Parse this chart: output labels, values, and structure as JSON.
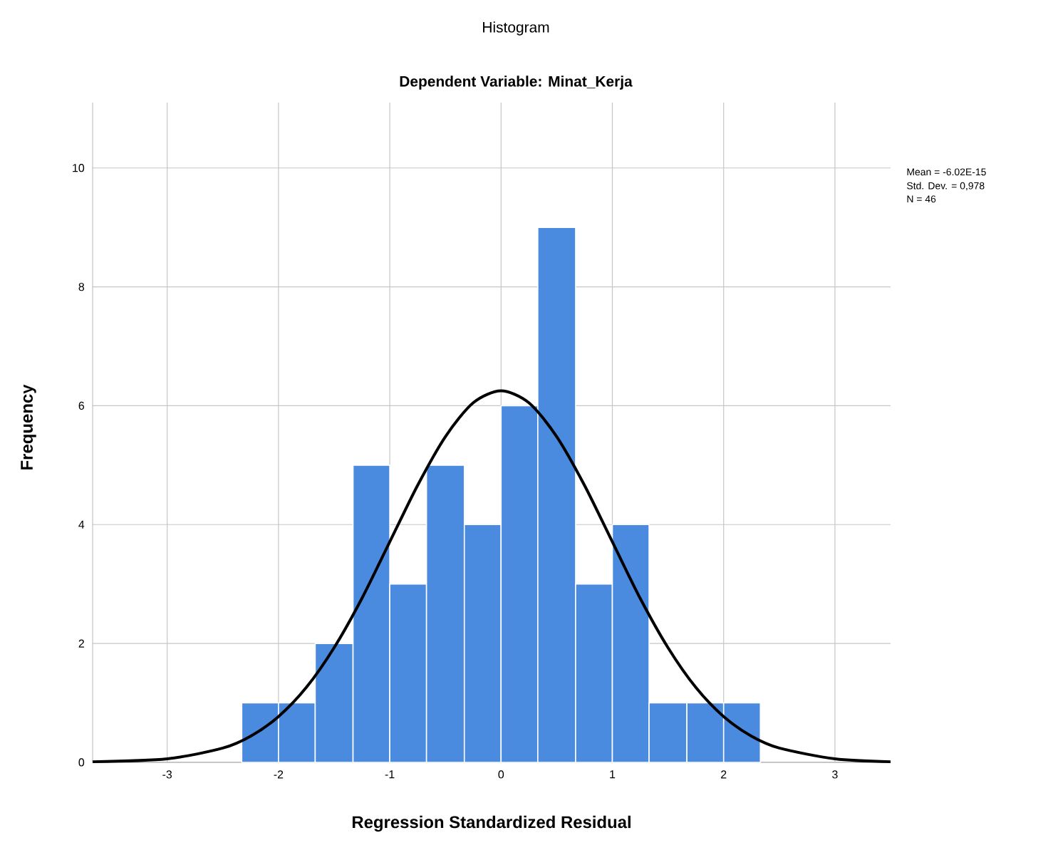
{
  "chart_data": {
    "type": "histogram",
    "title": "Histogram",
    "subtitle": "Dependent Variable: Minat_Kerja",
    "xlabel": "Regression Standardized Residual",
    "ylabel": "Frequency",
    "bins": [
      -2.33,
      -2.0,
      -1.67,
      -1.33,
      -1.0,
      -0.67,
      -0.33,
      0,
      0.33,
      0.67,
      1.0,
      1.33,
      1.67,
      2.0,
      2.33
    ],
    "values": [
      1,
      1,
      2,
      5,
      3,
      5,
      4,
      6,
      9,
      3,
      4,
      1,
      1,
      1
    ],
    "color": "#4a8be0",
    "series": [
      {
        "type": "line",
        "color": "#000000",
        "x": [
          -3.67,
          -3.0,
          -2.5,
          -2.25,
          -2.0,
          -1.75,
          -1.5,
          -1.25,
          -1.0,
          -0.75,
          -0.5,
          -0.25,
          0,
          0.25,
          0.5,
          0.75,
          1.0,
          1.25,
          1.5,
          1.75,
          2.0,
          2.25,
          2.5,
          3.0,
          3.5
        ],
        "values": [
          0.01,
          0.06,
          0.24,
          0.44,
          0.77,
          1.26,
          1.93,
          2.76,
          3.71,
          4.66,
          5.48,
          6.05,
          6.25,
          6.05,
          5.48,
          4.66,
          3.71,
          2.76,
          1.93,
          1.26,
          0.77,
          0.44,
          0.24,
          0.06,
          0.01
        ]
      }
    ],
    "xlim": [
      -3.67,
      3.5
    ],
    "ylim": [
      0,
      11.1
    ],
    "xticks": [
      -3,
      -2,
      -1,
      0,
      1,
      2,
      3
    ],
    "yticks": [
      0,
      2,
      4,
      6,
      8,
      10
    ],
    "grid": true,
    "annotations": [
      "Mean = -6.02E-15",
      "Std. Dev. = 0,978",
      "N = 46"
    ]
  }
}
